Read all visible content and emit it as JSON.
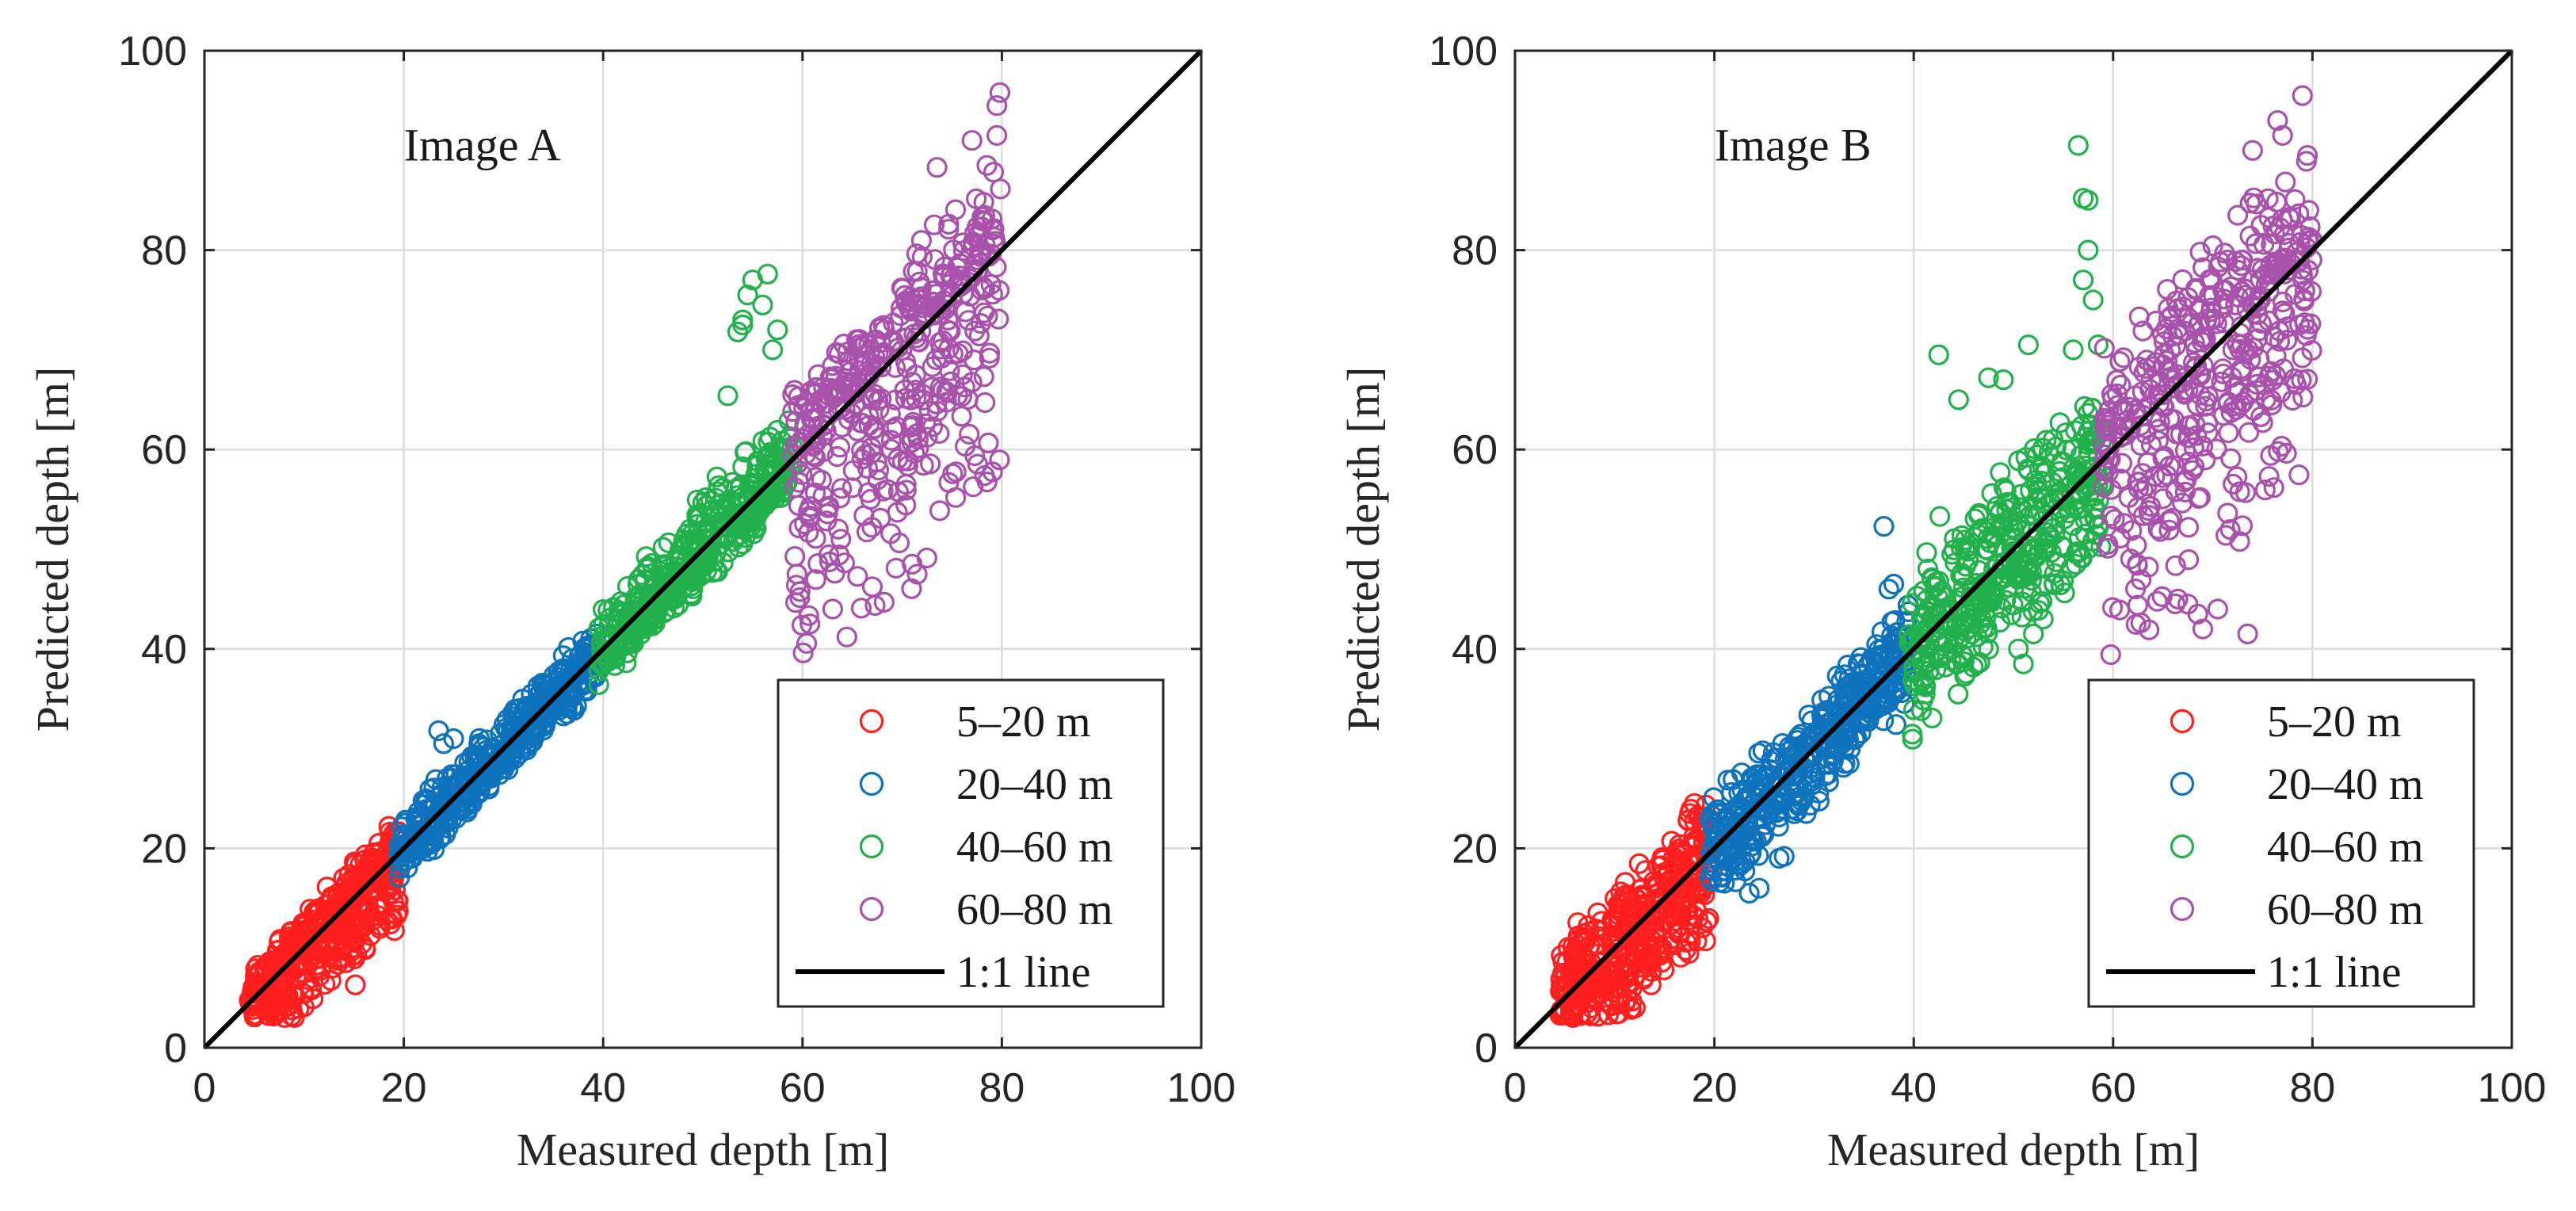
{
  "chart_data": [
    {
      "type": "scatter",
      "annotation": "Image A",
      "xlabel": "Measured depth [m]",
      "ylabel": "Predicted depth [m]",
      "xlim": [
        0,
        100
      ],
      "ylim": [
        0,
        100
      ],
      "xticks": [
        0,
        20,
        40,
        60,
        80,
        100
      ],
      "yticks": [
        0,
        20,
        40,
        60,
        80,
        100
      ],
      "grid": true,
      "legend_position": "bottom-right",
      "series": [
        {
          "name": "5–20 m",
          "color": "#ff1f1f",
          "x_range": [
            4.5,
            19.5
          ],
          "scatter_below": [
            3,
            9
          ],
          "scatter_above": [
            2,
            4
          ],
          "outliers": [
            [
              18.5,
              22.2
            ],
            [
              19,
              21.5
            ],
            [
              17.5,
              20.5
            ]
          ]
        },
        {
          "name": "20–40 m",
          "color": "#0f72bd",
          "x_range": [
            19.5,
            39.5
          ],
          "scatter_below": [
            1.5,
            3.5
          ],
          "scatter_above": [
            2,
            4
          ],
          "outliers": [
            [
              23.5,
              31.8
            ],
            [
              24,
              30.5
            ],
            [
              25,
              31
            ]
          ]
        },
        {
          "name": "40–60 m",
          "color": "#22b14c",
          "x_range": [
            39.5,
            59
          ],
          "scatter_below": [
            1.5,
            4
          ],
          "scatter_above": [
            2,
            6
          ],
          "outliers": [
            [
              52.5,
              65.4
            ],
            [
              53.5,
              71.8
            ],
            [
              54,
              73
            ],
            [
              54.5,
              75.5
            ],
            [
              55,
              77
            ],
            [
              56.5,
              77.6
            ],
            [
              57.5,
              72
            ],
            [
              57,
              70
            ],
            [
              54,
              72.5
            ],
            [
              56,
              74.5
            ]
          ]
        },
        {
          "name": "60–80 m",
          "color": "#a952ac",
          "x_range": [
            59,
            80
          ],
          "scatter_below": [
            8,
            28
          ],
          "scatter_above": [
            3,
            10
          ],
          "outliers": [
            [
              71.5,
              47.5
            ],
            [
              71,
              48.5
            ],
            [
              78.5,
              88.5
            ],
            [
              79.5,
              91.5
            ],
            [
              79.5,
              94.5
            ],
            [
              79.8,
              95.8
            ],
            [
              77,
              91
            ],
            [
              73.5,
              88.3
            ]
          ]
        },
        {
          "name": "1:1 line",
          "color": "#000000",
          "line": true
        }
      ]
    },
    {
      "type": "scatter",
      "annotation": "Image B",
      "xlabel": "Measured depth [m]",
      "ylabel": "Predicted depth [m]",
      "xlim": [
        0,
        100
      ],
      "ylim": [
        0,
        100
      ],
      "xticks": [
        0,
        20,
        40,
        60,
        80,
        100
      ],
      "yticks": [
        0,
        20,
        40,
        60,
        80,
        100
      ],
      "grid": true,
      "legend_position": "bottom-right",
      "series": [
        {
          "name": "5–20 m",
          "color": "#ff1f1f",
          "x_range": [
            4.5,
            19.5
          ],
          "scatter_below": [
            3,
            9
          ],
          "scatter_above": [
            3,
            7
          ],
          "outliers": [
            [
              18,
              24.5
            ],
            [
              19,
              22.5
            ],
            [
              17.5,
              23.5
            ]
          ]
        },
        {
          "name": "20–40 m",
          "color": "#0f72bd",
          "x_range": [
            19.5,
            39.5
          ],
          "scatter_below": [
            2,
            6
          ],
          "scatter_above": [
            2,
            6
          ],
          "outliers": [
            [
              23.5,
              15.5
            ],
            [
              24.5,
              16
            ],
            [
              26.5,
              19
            ],
            [
              27,
              19.2
            ],
            [
              37,
              52.3
            ],
            [
              37.5,
              46
            ],
            [
              38,
              46.5
            ]
          ]
        },
        {
          "name": "40–60 m",
          "color": "#22b14c",
          "x_range": [
            39.5,
            59
          ],
          "scatter_below": [
            3,
            10
          ],
          "scatter_above": [
            4,
            12
          ],
          "outliers": [
            [
              42.5,
              69.5
            ],
            [
              44.5,
              65
            ],
            [
              47.5,
              67.2
            ],
            [
              49,
              67
            ],
            [
              51.5,
              70.5
            ],
            [
              56.5,
              90.5
            ],
            [
              57,
              85.2
            ],
            [
              57.5,
              85
            ],
            [
              57.5,
              80
            ],
            [
              57,
              77
            ],
            [
              58,
              75
            ],
            [
              56,
              70
            ],
            [
              58.5,
              70.5
            ],
            [
              50.5,
              40
            ],
            [
              51,
              38.5
            ],
            [
              52,
              41.5
            ],
            [
              53,
              43
            ]
          ]
        },
        {
          "name": "60–80 m",
          "color": "#a952ac",
          "x_range": [
            59,
            80
          ],
          "scatter_below": [
            8,
            24
          ],
          "scatter_above": [
            4,
            12
          ],
          "outliers": [
            [
              66.5,
              45
            ],
            [
              67.5,
              44.5
            ],
            [
              69,
              42
            ],
            [
              68.5,
              43.5
            ],
            [
              70.5,
              44
            ],
            [
              73.5,
              41.5
            ],
            [
              76.5,
              93
            ],
            [
              77,
              91.5
            ],
            [
              79,
              95.5
            ],
            [
              79.5,
              89.5
            ],
            [
              74,
              90
            ],
            [
              72.5,
              83.5
            ]
          ]
        },
        {
          "name": "1:1 line",
          "color": "#000000",
          "line": true
        }
      ]
    }
  ]
}
